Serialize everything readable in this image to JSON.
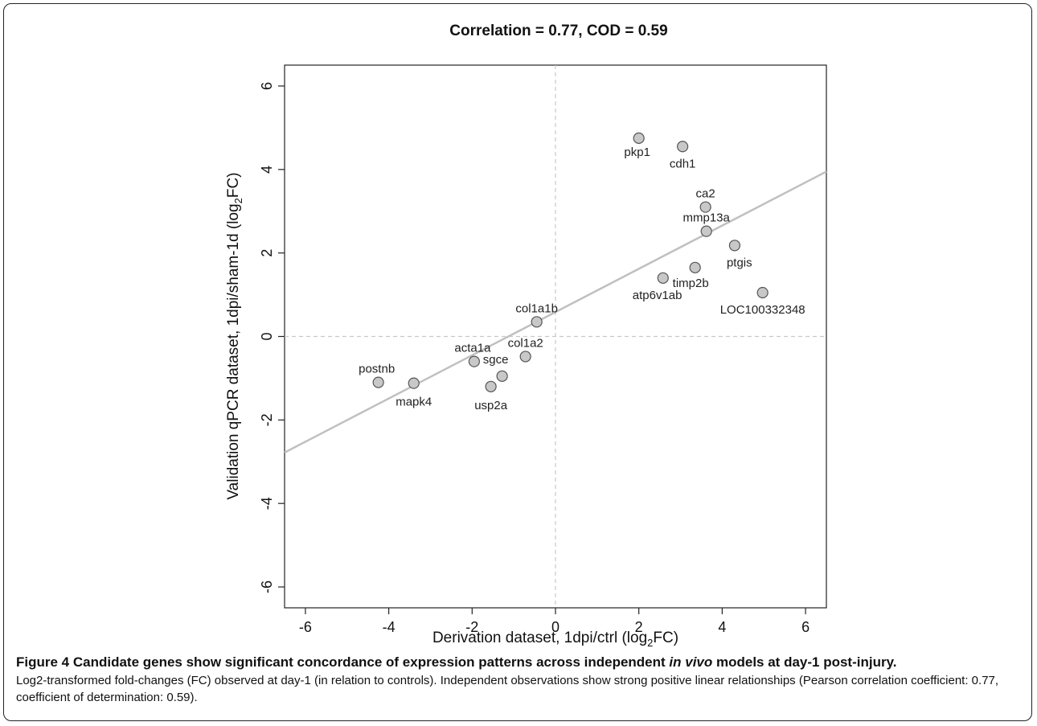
{
  "figure": {
    "caption_title_pre": "Figure 4 Candidate genes show significant concordance of expression patterns across independent ",
    "caption_title_em": "in vivo",
    "caption_title_post": " models at day-1 post-injury.",
    "caption_body": "Log2-transformed fold-changes (FC) observed at day-1 (in relation to controls). Independent observations show strong positive linear relationships (Pearson correlation coefficient: 0.77, coefficient of determination: 0.59)."
  },
  "chart_data": {
    "type": "scatter",
    "title": "Correlation = 0.77, COD = 0.59",
    "xlabel_main": "Derivation dataset, 1dpi/ctrl (log",
    "xlabel_sub": "2",
    "xlabel_end": "FC)",
    "ylabel_main": "Validation qPCR dataset, 1dpi/sham-1d (log",
    "ylabel_sub": "2",
    "ylabel_end": "FC)",
    "xlim": [
      -6.5,
      6.5
    ],
    "ylim": [
      -6.5,
      6.5
    ],
    "xticks": [
      -6,
      -4,
      -2,
      0,
      2,
      4,
      6
    ],
    "yticks": [
      -6,
      -4,
      -2,
      0,
      2,
      4,
      6
    ],
    "reference_lines": {
      "x": 0,
      "y": 0
    },
    "regression_line": {
      "x1": -6.5,
      "y1": -2.78,
      "x2": 6.5,
      "y2": 3.95
    },
    "colors": {
      "points": "#c8c8c8",
      "point_stroke": "#555555",
      "line": "#c0c0c0",
      "ref": "#c8c8c8"
    },
    "points": [
      {
        "label": "pkp1",
        "x": 2.0,
        "y": 4.75
      },
      {
        "label": "cdh1",
        "x": 3.05,
        "y": 4.55
      },
      {
        "label": "ca2",
        "x": 3.6,
        "y": 3.1
      },
      {
        "label": "mmp13a",
        "x": 3.62,
        "y": 2.52
      },
      {
        "label": "ptgis",
        "x": 4.3,
        "y": 2.18
      },
      {
        "label": "timp2b",
        "x": 3.35,
        "y": 1.65
      },
      {
        "label": "atp6v1ab",
        "x": 2.58,
        "y": 1.4
      },
      {
        "label": "LOC100332348",
        "x": 4.97,
        "y": 1.05
      },
      {
        "label": "col1a1b",
        "x": -0.45,
        "y": 0.35
      },
      {
        "label": "col1a2",
        "x": -0.72,
        "y": -0.48
      },
      {
        "label": "acta1a",
        "x": -1.95,
        "y": -0.6
      },
      {
        "label": "sgce",
        "x": -1.28,
        "y": -0.95
      },
      {
        "label": "usp2a",
        "x": -1.55,
        "y": -1.2
      },
      {
        "label": "postnb",
        "x": -4.25,
        "y": -1.1
      },
      {
        "label": "mapk4",
        "x": -3.4,
        "y": -1.12
      }
    ]
  }
}
